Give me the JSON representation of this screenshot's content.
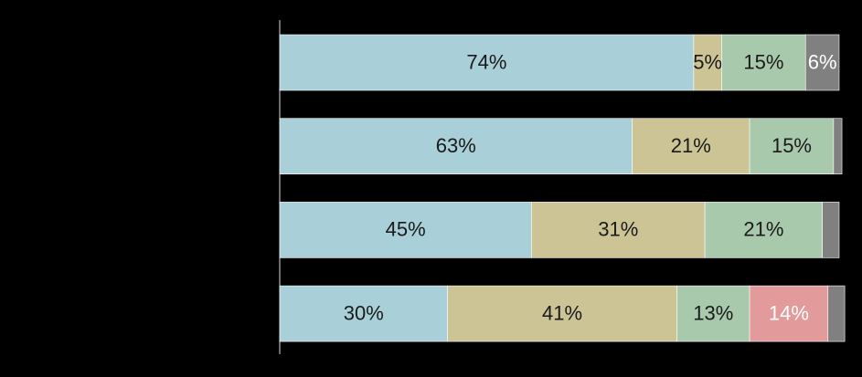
{
  "chart_data": {
    "type": "stacked-bar-horizontal",
    "categories": [
      null,
      null,
      null,
      null
    ],
    "xlim": [
      0,
      100
    ],
    "series": [
      {
        "color": "#a9cfd8",
        "label_color": "#1a1a1a",
        "values": [
          74,
          63,
          45,
          30
        ],
        "value_labels": [
          "74%",
          "63%",
          "45%",
          "30%"
        ]
      },
      {
        "color": "#cdc496",
        "label_color": "#1a1a1a",
        "values": [
          5,
          21,
          31,
          41
        ],
        "value_labels": [
          "5%",
          "21%",
          "31%",
          "41%"
        ]
      },
      {
        "color": "#a9c9ac",
        "label_color": "#1a1a1a",
        "values": [
          15,
          15,
          21,
          13
        ],
        "value_labels": [
          "15%",
          "15%",
          "21%",
          "13%"
        ]
      },
      {
        "color": "#e39a9b",
        "label_color": "#ffffff",
        "values": [
          null,
          null,
          null,
          14
        ],
        "value_labels": [
          null,
          null,
          null,
          "14%"
        ]
      },
      {
        "color": "#808080",
        "label_color": "#ffffff",
        "values": [
          6,
          1.5,
          3,
          3
        ],
        "value_labels": [
          "6%",
          null,
          null,
          null
        ]
      }
    ]
  }
}
